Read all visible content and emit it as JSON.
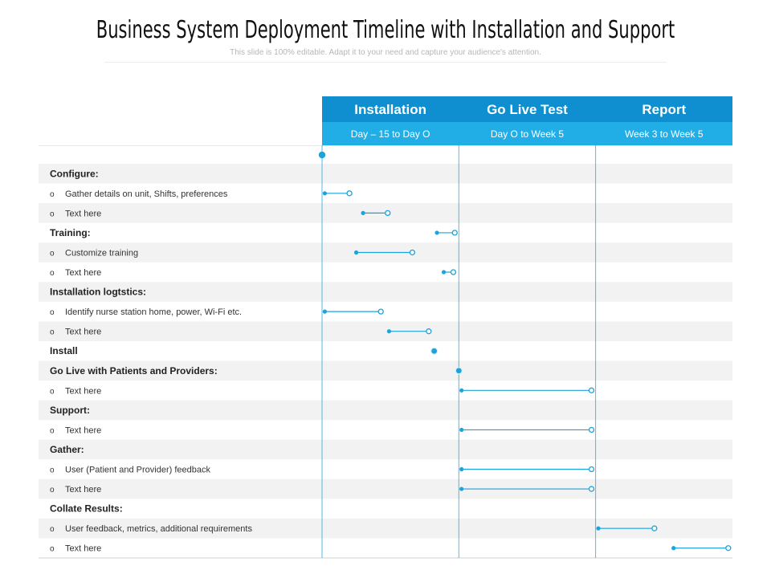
{
  "title": "Business System Deployment Timeline with Installation and Support",
  "subtitle": "This slide is 100% editable. Adapt it to your need and capture your audience's attention.",
  "colors": {
    "accent": "#1aa3dc",
    "header_dark": "#0f8fd0",
    "header_light": "#21aee6",
    "row_alt": "#f2f2f2",
    "grid": "#e6e6e6"
  },
  "phases": [
    {
      "title": "Installation",
      "range": "Day – 15 to Day O"
    },
    {
      "title": "Go Live Test",
      "range": "Day O to Week 5"
    },
    {
      "title": "Report",
      "range": "Week 3 to Week 5"
    }
  ],
  "chart_data": {
    "type": "gantt",
    "timeline_unit": "fraction of phase width (0 = phase start, 3 = end of Report phase)",
    "phases_axis": [
      "Installation",
      "Go Live Test",
      "Report"
    ],
    "rows": [
      {
        "label": "Configure:",
        "kind": "section"
      },
      {
        "label": "Gather details on unit, Shifts, preferences",
        "kind": "item",
        "start": 0.02,
        "end": 0.2
      },
      {
        "label": "Text here",
        "kind": "item",
        "start": 0.3,
        "end": 0.48
      },
      {
        "label": "Training:",
        "kind": "section",
        "start": 0.84,
        "end": 0.97
      },
      {
        "label": "Customize training",
        "kind": "item",
        "start": 0.25,
        "end": 0.66
      },
      {
        "label": "Text here",
        "kind": "item",
        "start": 0.89,
        "end": 0.96
      },
      {
        "label": "Installation logtstics:",
        "kind": "section"
      },
      {
        "label": "Identify nurse station home, power, Wi-Fi etc.",
        "kind": "item",
        "start": 0.02,
        "end": 0.43
      },
      {
        "label": "Text here",
        "kind": "item",
        "start": 0.49,
        "end": 0.78
      },
      {
        "label": "Install",
        "kind": "milestone",
        "at": 0.82
      },
      {
        "label": "Go Live with Patients and Providers:",
        "kind": "milestone",
        "at": 1.0
      },
      {
        "label": "Text here",
        "kind": "item",
        "start": 1.02,
        "end": 1.97
      },
      {
        "label": "Support:",
        "kind": "section"
      },
      {
        "label": "Text here",
        "kind": "item",
        "start": 1.02,
        "end": 1.97
      },
      {
        "label": "Gather:",
        "kind": "section"
      },
      {
        "label": "User (Patient and Provider) feedback",
        "kind": "item",
        "start": 1.02,
        "end": 1.97
      },
      {
        "label": "Text here",
        "kind": "item",
        "start": 1.02,
        "end": 1.97
      },
      {
        "label": "Collate Results:",
        "kind": "section"
      },
      {
        "label": "User feedback, metrics, additional requirements",
        "kind": "item",
        "start": 2.02,
        "end": 2.43
      },
      {
        "label": "Text here",
        "kind": "item",
        "start": 2.57,
        "end": 2.97
      }
    ],
    "start_marker": 0.0
  }
}
